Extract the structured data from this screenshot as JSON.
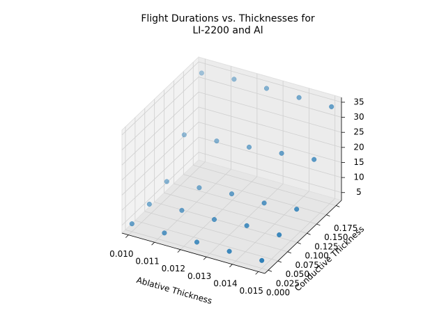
{
  "chart_data": {
    "type": "scatter3d",
    "title": [
      "Flight Durations vs. Thicknesses for",
      "LI-2200 and Al"
    ],
    "xlabel": "Ablative Thickness",
    "ylabel": "Conductive Thickness",
    "color": "#1f77b4",
    "grid": true,
    "x": [
      0.01,
      0.01125,
      0.0125,
      0.01375,
      0.015,
      0.01,
      0.01125,
      0.0125,
      0.01375,
      0.015,
      0.01,
      0.01125,
      0.0125,
      0.01375,
      0.015,
      0.01,
      0.01125,
      0.0125,
      0.01375,
      0.015,
      0.01,
      0.01125,
      0.0125,
      0.01375,
      0.015
    ],
    "y": [
      0,
      0,
      0,
      0,
      0,
      0.045,
      0.045,
      0.045,
      0.045,
      0.045,
      0.09,
      0.09,
      0.09,
      0.09,
      0.09,
      0.135,
      0.135,
      0.135,
      0.135,
      0.135,
      0.18,
      0.18,
      0.18,
      0.18,
      0.18
    ],
    "z": [
      5,
      5,
      5,
      5,
      5,
      6,
      7,
      7,
      8,
      8,
      8,
      9,
      10,
      10,
      11,
      18,
      19,
      20,
      21,
      22,
      33,
      34,
      34,
      34,
      34
    ],
    "xlim": [
      0.00975,
      0.01525
    ],
    "ylim": [
      -0.009,
      0.189
    ],
    "zlim": [
      2.4,
      36.6
    ],
    "xticks": [
      {
        "value": 0.01,
        "label": "0.010"
      },
      0.011,
      0.012,
      0.013,
      0.014,
      0.015
    ],
    "yticks": [
      {
        "value": 0,
        "label": "0.000"
      },
      0.025,
      {
        "value": 0.05,
        "label": "0.050"
      },
      0.075,
      {
        "value": 0.1,
        "label": "0.100"
      },
      0.125,
      {
        "value": 0.15,
        "label": "0.150"
      },
      0.175
    ],
    "zticks": [
      5,
      10,
      15,
      20,
      25,
      30,
      35
    ]
  }
}
